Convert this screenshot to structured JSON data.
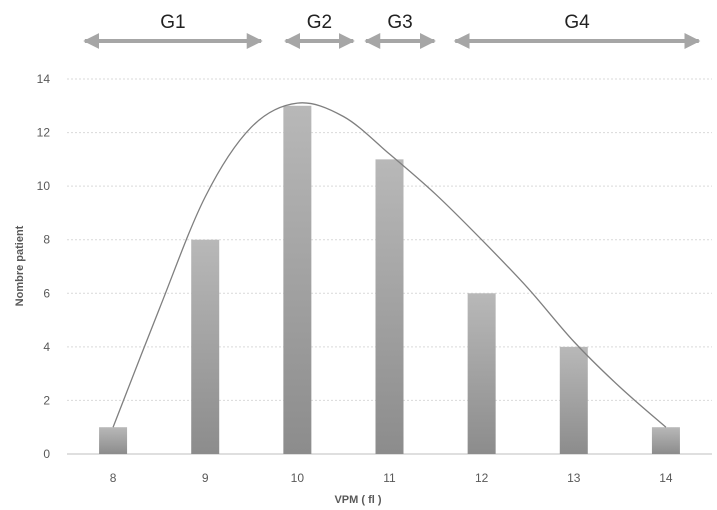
{
  "chart_data": {
    "type": "bar",
    "title": "",
    "xlabel": "VPM ( fl )",
    "ylabel": "Nombre patient",
    "categories": [
      "8",
      "9",
      "10",
      "11",
      "12",
      "13",
      "14"
    ],
    "values": [
      1,
      8,
      13,
      11,
      6,
      4,
      1
    ],
    "ylim": [
      0,
      14
    ],
    "yticks": [
      "0",
      "2",
      "4",
      "6",
      "8",
      "10",
      "12",
      "14"
    ],
    "grid": true,
    "legend": "none",
    "curve": {
      "type": "line",
      "smooth": true,
      "x": [
        8,
        8.5,
        9,
        9.5,
        10,
        10.5,
        11,
        11.5,
        12,
        12.5,
        13,
        13.5,
        14
      ],
      "y": [
        1,
        5.4,
        9.6,
        12.2,
        13.1,
        12.6,
        11.2,
        9.7,
        8.0,
        6.2,
        4.2,
        2.5,
        1
      ]
    },
    "groups": [
      {
        "label": "G1",
        "from": 7.65,
        "to": 9.65
      },
      {
        "label": "G2",
        "from": 9.83,
        "to": 10.65
      },
      {
        "label": "G3",
        "from": 10.7,
        "to": 11.53
      },
      {
        "label": "G4",
        "from": 11.67,
        "to": 14.4
      }
    ],
    "colors": {
      "bar": "#a6a6a6",
      "curve": "#7f7f7f",
      "arrow": "#a6a6a6",
      "grid": "#d9d9d9"
    }
  }
}
